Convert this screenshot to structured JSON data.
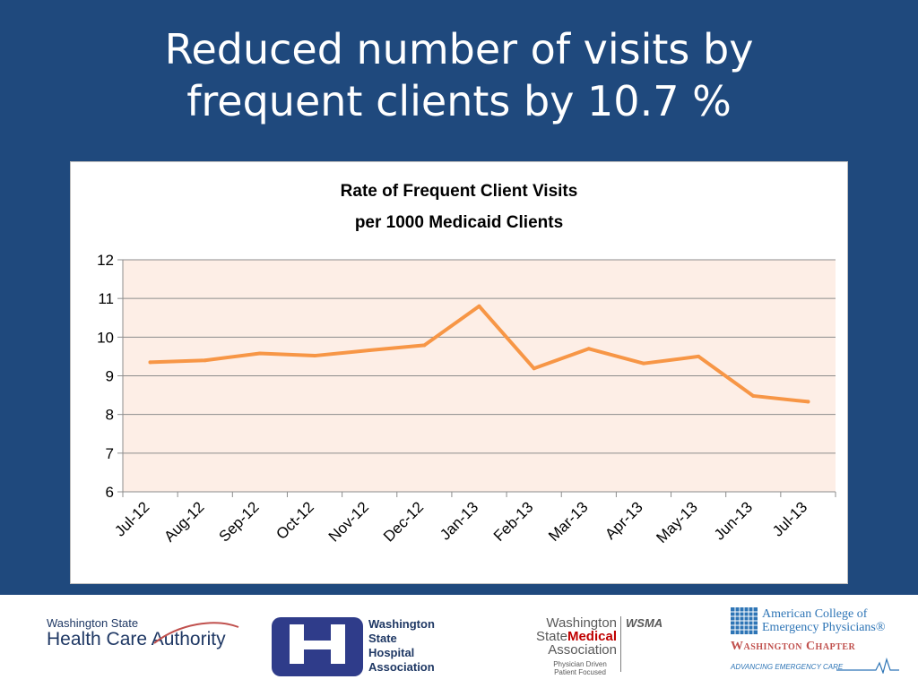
{
  "slide": {
    "title_line1": "Reduced number of visits by",
    "title_line2": "frequent clients by 10.7 %",
    "background_color": "#1f497d"
  },
  "chart_data": {
    "type": "line",
    "title": "Rate of Frequent Client Visits per 1000 Medicaid Clients",
    "title_line1": "Rate of Frequent Client Visits",
    "title_line2": "per 1000 Medicaid Clients",
    "xlabel": "",
    "ylabel": "",
    "categories": [
      "Jul-12",
      "Aug-12",
      "Sep-12",
      "Oct-12",
      "Nov-12",
      "Dec-12",
      "Jan-13",
      "Feb-13",
      "Mar-13",
      "Apr-13",
      "May-13",
      "Jun-13",
      "Jul-13"
    ],
    "series": [
      {
        "values": [
          9.35,
          9.4,
          9.58,
          9.52,
          9.66,
          9.79,
          10.8,
          9.19,
          9.7,
          9.32,
          9.5,
          8.48,
          8.33
        ],
        "color": "#f79646"
      }
    ],
    "ylim": [
      6,
      12
    ],
    "yticks": [
      6,
      7,
      8,
      9,
      10,
      11,
      12
    ],
    "grid": true,
    "legend": "none",
    "plot_background": "#fdeee6"
  },
  "footer": {
    "hca": {
      "line1": "Washington State",
      "line2_part1": "Health Care ",
      "line2_part2": "Authority",
      "brand_color": "#1f3864",
      "accent_color": "#c0504d"
    },
    "wsha": {
      "line1": "Washington",
      "line2": "State",
      "line3": "Hospital",
      "line4": "Association",
      "brand_color": "#2f3c8a"
    },
    "wsma": {
      "line1": "Washington",
      "line2_part1": "State",
      "line2_part2": "Medical",
      "line3": "Association",
      "mark": "WSMA",
      "tag1": "Physician Driven",
      "tag2": "Patient Focused"
    },
    "acep": {
      "line1": "American College of",
      "line2": "Emergency Physicians®",
      "chapter": "Washington Chapter",
      "tagline": "ADVANCING EMERGENCY CARE",
      "brand_color": "#2e75b6",
      "chapter_color": "#c0504d"
    }
  }
}
